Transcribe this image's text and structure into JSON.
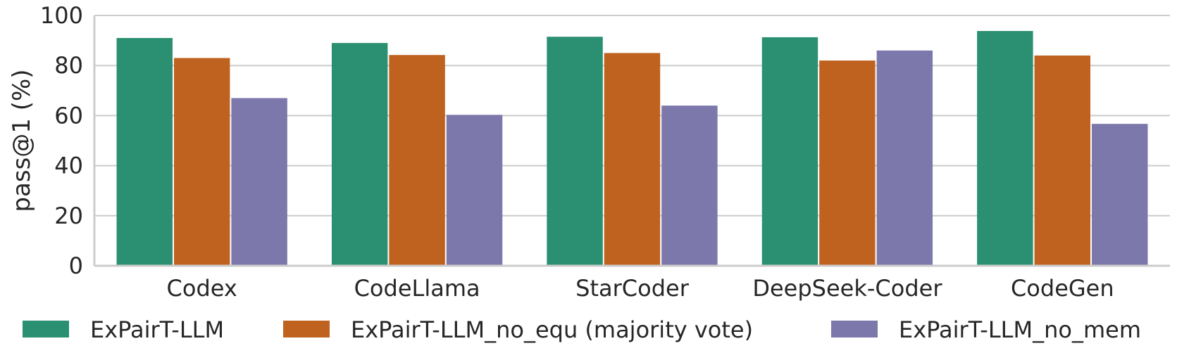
{
  "chart_data": {
    "type": "bar",
    "ylabel": "pass@1 (%)",
    "xlabel": "",
    "ylim": [
      0,
      100
    ],
    "yticks": [
      "0",
      "20",
      "40",
      "60",
      "80",
      "100"
    ],
    "grid": true,
    "legend_position": "bottom",
    "categories": [
      "Codex",
      "CodeLlama",
      "StarCoder",
      "DeepSeek-Coder",
      "CodeGen"
    ],
    "series": [
      {
        "name": "ExPairT-LLM",
        "color": "#2b8f72",
        "values": [
          91,
          89,
          91.5,
          91.3,
          93.8
        ]
      },
      {
        "name": "ExPairT-LLM_no_equ (majority vote)",
        "color": "#bf621f",
        "values": [
          83,
          84.2,
          85,
          82,
          84
        ]
      },
      {
        "name": "ExPairT-LLM_no_mem",
        "color": "#7d78ab",
        "values": [
          67,
          60.3,
          64,
          86,
          56.7
        ]
      }
    ]
  }
}
